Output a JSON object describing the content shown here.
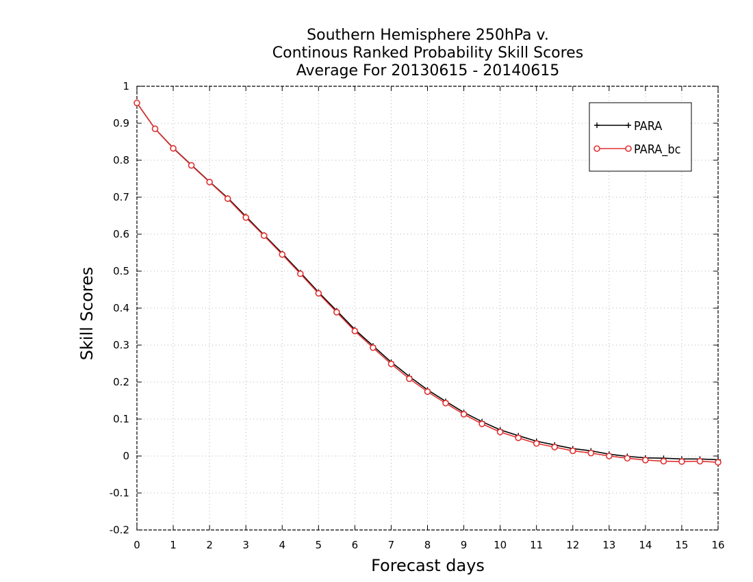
{
  "chart_data": {
    "type": "line",
    "title_lines": [
      "Southern Hemisphere 250hPa v.",
      "Continous Ranked Probability Skill Scores",
      "Average For 20130615 - 20140615"
    ],
    "xlabel": "Forecast days",
    "ylabel": "Skill Scores",
    "xlim": [
      0,
      16
    ],
    "ylim": [
      -0.2,
      1
    ],
    "xticks": [
      "0",
      "1",
      "2",
      "3",
      "4",
      "5",
      "6",
      "7",
      "8",
      "9",
      "10",
      "11",
      "12",
      "13",
      "14",
      "15",
      "16"
    ],
    "yticks": [
      "-0.2",
      "-0.1",
      "0",
      "0.1",
      "0.2",
      "0.3",
      "0.4",
      "0.5",
      "0.6",
      "0.7",
      "0.8",
      "0.9",
      "1"
    ],
    "grid": true,
    "legend_position": "top-right",
    "x": [
      0,
      0.5,
      1,
      1.5,
      2,
      2.5,
      3,
      3.5,
      4,
      4.5,
      5,
      5.5,
      6,
      6.5,
      7,
      7.5,
      8,
      8.5,
      9,
      9.5,
      10,
      10.5,
      11,
      11.5,
      12,
      12.5,
      13,
      13.5,
      14,
      14.5,
      15,
      15.5,
      16
    ],
    "series": [
      {
        "name": "PARA",
        "color": "#000000",
        "marker": "plus",
        "values": [
          0.955,
          0.885,
          0.833,
          0.787,
          0.742,
          0.698,
          0.648,
          0.598,
          0.548,
          0.496,
          0.443,
          0.393,
          0.342,
          0.298,
          0.254,
          0.215,
          0.179,
          0.148,
          0.118,
          0.093,
          0.071,
          0.055,
          0.04,
          0.03,
          0.02,
          0.014,
          0.005,
          -0.001,
          -0.005,
          -0.006,
          -0.008,
          -0.008,
          -0.01
        ]
      },
      {
        "name": "PARA_bc",
        "color": "#e03030",
        "marker": "circle",
        "values": [
          0.955,
          0.885,
          0.832,
          0.786,
          0.741,
          0.696,
          0.645,
          0.596,
          0.545,
          0.493,
          0.44,
          0.389,
          0.338,
          0.293,
          0.249,
          0.209,
          0.174,
          0.143,
          0.113,
          0.087,
          0.065,
          0.049,
          0.034,
          0.024,
          0.014,
          0.008,
          0.0,
          -0.006,
          -0.011,
          -0.014,
          -0.015,
          -0.014,
          -0.017
        ]
      }
    ]
  }
}
